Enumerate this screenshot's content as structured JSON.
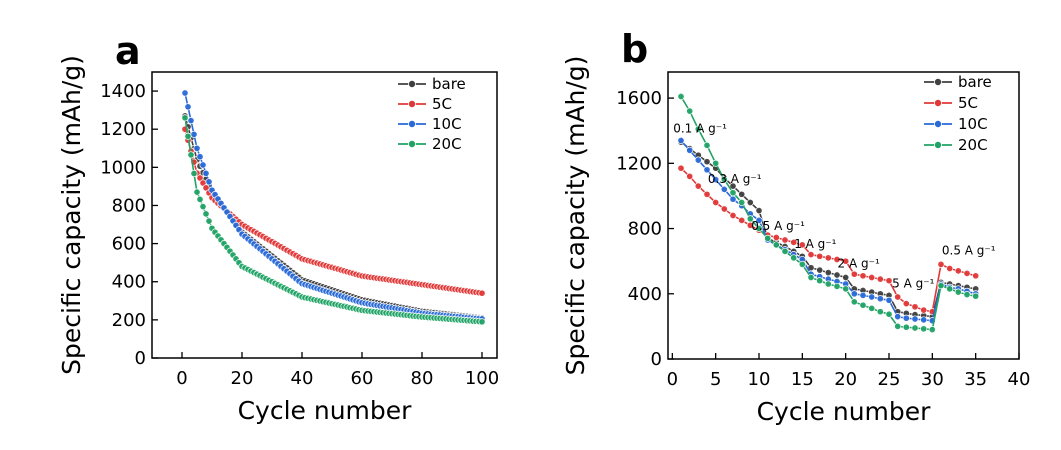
{
  "chart_data": [
    {
      "panel": "a",
      "type": "line",
      "xlabel": "Cycle number",
      "ylabel": "Specific capacity (mAh/g)",
      "xlim": [
        -10,
        105
      ],
      "ylim": [
        0,
        1500
      ],
      "xticks": [
        0,
        20,
        40,
        60,
        80,
        100
      ],
      "yticks": [
        0,
        200,
        400,
        600,
        800,
        1000,
        1200,
        1400
      ],
      "legend_position": "top-right",
      "series": [
        {
          "name": "bare",
          "color": "#404040",
          "x": [
            1,
            5,
            10,
            20,
            40,
            60,
            80,
            100
          ],
          "y": [
            1270,
            1040,
            870,
            660,
            410,
            305,
            245,
            210
          ]
        },
        {
          "name": "5C",
          "color": "#e03838",
          "x": [
            1,
            5,
            10,
            20,
            40,
            60,
            80,
            100
          ],
          "y": [
            1200,
            970,
            840,
            700,
            520,
            430,
            385,
            340
          ]
        },
        {
          "name": "10C",
          "color": "#2a6ad8",
          "x": [
            1,
            5,
            10,
            20,
            40,
            60,
            80,
            100
          ],
          "y": [
            1390,
            1100,
            880,
            650,
            390,
            290,
            235,
            205
          ]
        },
        {
          "name": "20C",
          "color": "#22a366",
          "x": [
            1,
            5,
            10,
            20,
            40,
            60,
            80,
            100
          ],
          "y": [
            1260,
            870,
            680,
            480,
            320,
            250,
            215,
            190
          ]
        }
      ]
    },
    {
      "panel": "b",
      "type": "line",
      "xlabel": "Cycle number",
      "ylabel": "Specific capacity (mAh/g)",
      "xlim": [
        -0.5,
        40
      ],
      "ylim": [
        0,
        1760
      ],
      "xticks": [
        0,
        5,
        10,
        15,
        20,
        25,
        30,
        35,
        40
      ],
      "yticks": [
        0,
        400,
        800,
        1200,
        1600
      ],
      "legend_position": "top-right",
      "annotations": [
        {
          "text": "0.1 A g⁻¹",
          "x": 3.2,
          "y": 1390
        },
        {
          "text": "0.3 A g⁻¹",
          "x": 7.2,
          "y": 1080
        },
        {
          "text": "0.5 A g⁻¹",
          "x": 12.2,
          "y": 790
        },
        {
          "text": "1 A g⁻¹",
          "x": 16.5,
          "y": 680
        },
        {
          "text": "2 A g⁻¹",
          "x": 21.5,
          "y": 560
        },
        {
          "text": "5 A g⁻¹",
          "x": 27.8,
          "y": 440
        },
        {
          "text": "0.5 A g⁻¹",
          "x": 34.2,
          "y": 640
        }
      ],
      "series": [
        {
          "name": "bare",
          "color": "#404040",
          "x": [
            1,
            2,
            3,
            4,
            5,
            6,
            7,
            8,
            9,
            10,
            11,
            12,
            13,
            14,
            15,
            16,
            17,
            18,
            19,
            20,
            21,
            22,
            23,
            24,
            25,
            26,
            27,
            28,
            29,
            30,
            31,
            32,
            33,
            34,
            35
          ],
          "y": [
            1330,
            1290,
            1250,
            1210,
            1170,
            1110,
            1060,
            1010,
            960,
            910,
            740,
            715,
            690,
            660,
            630,
            560,
            545,
            530,
            515,
            500,
            430,
            420,
            410,
            400,
            390,
            290,
            280,
            272,
            266,
            260,
            470,
            460,
            450,
            440,
            430
          ]
        },
        {
          "name": "5C",
          "color": "#e03838",
          "x": [
            1,
            2,
            3,
            4,
            5,
            6,
            7,
            8,
            9,
            10,
            11,
            12,
            13,
            14,
            15,
            16,
            17,
            18,
            19,
            20,
            21,
            22,
            23,
            24,
            25,
            26,
            27,
            28,
            29,
            30,
            31,
            32,
            33,
            34,
            35
          ],
          "y": [
            1170,
            1120,
            1060,
            1010,
            960,
            920,
            880,
            850,
            820,
            790,
            760,
            745,
            730,
            715,
            700,
            640,
            630,
            620,
            610,
            600,
            520,
            510,
            500,
            490,
            480,
            380,
            340,
            320,
            300,
            290,
            580,
            555,
            540,
            525,
            510
          ]
        },
        {
          "name": "10C",
          "color": "#2a6ad8",
          "x": [
            1,
            2,
            3,
            4,
            5,
            6,
            7,
            8,
            9,
            10,
            11,
            12,
            13,
            14,
            15,
            16,
            17,
            18,
            19,
            20,
            21,
            22,
            23,
            24,
            25,
            26,
            27,
            28,
            29,
            30,
            31,
            32,
            33,
            34,
            35
          ],
          "y": [
            1340,
            1280,
            1220,
            1160,
            1100,
            1040,
            980,
            940,
            890,
            850,
            730,
            700,
            670,
            640,
            610,
            520,
            505,
            490,
            475,
            460,
            400,
            390,
            380,
            370,
            360,
            260,
            250,
            245,
            240,
            235,
            460,
            440,
            430,
            415,
            400
          ]
        },
        {
          "name": "20C",
          "color": "#22a366",
          "x": [
            1,
            2,
            3,
            4,
            5,
            6,
            7,
            8,
            9,
            10,
            11,
            12,
            13,
            14,
            15,
            16,
            17,
            18,
            19,
            20,
            21,
            22,
            23,
            24,
            25,
            26,
            27,
            28,
            29,
            30,
            31,
            32,
            33,
            34,
            35
          ],
          "y": [
            1610,
            1520,
            1410,
            1310,
            1200,
            1100,
            1020,
            960,
            860,
            800,
            740,
            700,
            660,
            620,
            580,
            500,
            480,
            460,
            445,
            430,
            350,
            330,
            310,
            290,
            275,
            200,
            195,
            190,
            185,
            180,
            450,
            430,
            410,
            395,
            385
          ]
        }
      ]
    }
  ]
}
